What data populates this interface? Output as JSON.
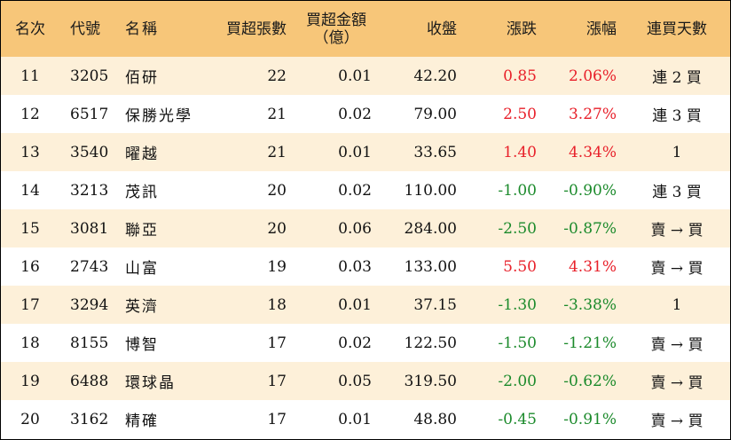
{
  "colors": {
    "header_bg": "#f7c679",
    "row_odd_bg": "#fdf0d9",
    "up": "#e8202a",
    "down": "#1b8a2b"
  },
  "headers": {
    "rank": "名次",
    "code": "代號",
    "name": "名稱",
    "net_lots": "買超張數",
    "net_amount_line1": "買超金額",
    "net_amount_line2": "（億）",
    "close": "收盤",
    "change": "漲跌",
    "change_pct": "漲幅",
    "buy_days": "連買天數"
  },
  "rows": [
    {
      "rank": "11",
      "code": "3205",
      "name": "佰研",
      "net_lots": "22",
      "net_amount": "0.01",
      "close": "42.20",
      "change": "0.85",
      "change_pct": "2.06%",
      "dir": "up",
      "buy_days": "連 2 買"
    },
    {
      "rank": "12",
      "code": "6517",
      "name": "保勝光學",
      "net_lots": "21",
      "net_amount": "0.02",
      "close": "79.00",
      "change": "2.50",
      "change_pct": "3.27%",
      "dir": "up",
      "buy_days": "連 3 買"
    },
    {
      "rank": "13",
      "code": "3540",
      "name": "曜越",
      "net_lots": "21",
      "net_amount": "0.01",
      "close": "33.65",
      "change": "1.40",
      "change_pct": "4.34%",
      "dir": "up",
      "buy_days": "1"
    },
    {
      "rank": "14",
      "code": "3213",
      "name": "茂訊",
      "net_lots": "20",
      "net_amount": "0.02",
      "close": "110.00",
      "change": "-1.00",
      "change_pct": "-0.90%",
      "dir": "down",
      "buy_days": "連 3 買"
    },
    {
      "rank": "15",
      "code": "3081",
      "name": "聯亞",
      "net_lots": "20",
      "net_amount": "0.06",
      "close": "284.00",
      "change": "-2.50",
      "change_pct": "-0.87%",
      "dir": "down",
      "buy_days": "賣 → 買"
    },
    {
      "rank": "16",
      "code": "2743",
      "name": "山富",
      "net_lots": "19",
      "net_amount": "0.03",
      "close": "133.00",
      "change": "5.50",
      "change_pct": "4.31%",
      "dir": "up",
      "buy_days": "賣 → 買"
    },
    {
      "rank": "17",
      "code": "3294",
      "name": "英濟",
      "net_lots": "18",
      "net_amount": "0.01",
      "close": "37.15",
      "change": "-1.30",
      "change_pct": "-3.38%",
      "dir": "down",
      "buy_days": "1"
    },
    {
      "rank": "18",
      "code": "8155",
      "name": "博智",
      "net_lots": "17",
      "net_amount": "0.02",
      "close": "122.50",
      "change": "-1.50",
      "change_pct": "-1.21%",
      "dir": "down",
      "buy_days": "賣 → 買"
    },
    {
      "rank": "19",
      "code": "6488",
      "name": "環球晶",
      "net_lots": "17",
      "net_amount": "0.05",
      "close": "319.50",
      "change": "-2.00",
      "change_pct": "-0.62%",
      "dir": "down",
      "buy_days": "賣 → 買"
    },
    {
      "rank": "20",
      "code": "3162",
      "name": "精確",
      "net_lots": "17",
      "net_amount": "0.01",
      "close": "48.80",
      "change": "-0.45",
      "change_pct": "-0.91%",
      "dir": "down",
      "buy_days": "賣 → 買"
    }
  ]
}
